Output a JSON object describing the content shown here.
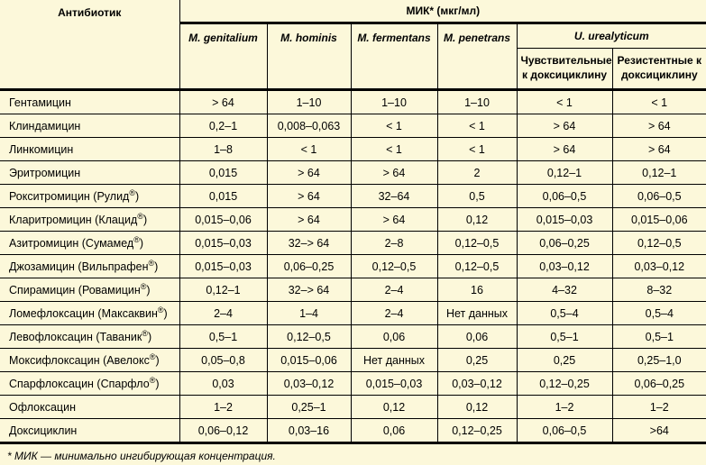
{
  "colors": {
    "background": "#fcf8da",
    "border": "#000000",
    "text": "#000000"
  },
  "table": {
    "col1_header": "Антибиотик",
    "group_header": "МИК* (мкг/мл)",
    "species_headers": [
      "M. genitalium",
      "M. hominis",
      "M. fermentans",
      "M. penetrans"
    ],
    "ureaplasma_header": "U. urealyticum",
    "ureaplasma_sub_headers": [
      "Чувствительные к доксициклину",
      "Резистентные к доксициклину"
    ],
    "rows": [
      {
        "name": "Гентамицин",
        "values": [
          "> 64",
          "1–10",
          "1–10",
          "1–10",
          "< 1",
          "< 1"
        ]
      },
      {
        "name": "Клиндамицин",
        "values": [
          "0,2–1",
          "0,008–0,063",
          "< 1",
          "< 1",
          "> 64",
          "> 64"
        ]
      },
      {
        "name": "Линкомицин",
        "values": [
          "1–8",
          "< 1",
          "< 1",
          "< 1",
          "> 64",
          "> 64"
        ]
      },
      {
        "name": "Эритромицин",
        "values": [
          "0,015",
          "> 64",
          "> 64",
          "2",
          "0,12–1",
          "0,12–1"
        ]
      },
      {
        "name": "Рокситромицин (Рулид®)",
        "values": [
          "0,015",
          "> 64",
          "32–64",
          "0,5",
          "0,06–0,5",
          "0,06–0,5"
        ]
      },
      {
        "name": "Кларитромицин (Клацид®)",
        "values": [
          "0,015–0,06",
          "> 64",
          "> 64",
          "0,12",
          "0,015–0,03",
          "0,015–0,06"
        ]
      },
      {
        "name": "Азитромицин (Сумамед®)",
        "values": [
          "0,015–0,03",
          "32–> 64",
          "2–8",
          "0,12–0,5",
          "0,06–0,25",
          "0,12–0,5"
        ]
      },
      {
        "name": "Джозамицин (Вильпрафен®)",
        "values": [
          "0,015–0,03",
          "0,06–0,25",
          "0,12–0,5",
          "0,12–0,5",
          "0,03–0,12",
          "0,03–0,12"
        ]
      },
      {
        "name": "Спирамицин (Ровамицин®)",
        "values": [
          "0,12–1",
          "32–> 64",
          "2–4",
          "16",
          "4–32",
          "8–32"
        ]
      },
      {
        "name": "Ломефлоксацин (Максаквин®)",
        "values": [
          "2–4",
          "1–4",
          "2–4",
          "Нет данных",
          "0,5–4",
          "0,5–4"
        ]
      },
      {
        "name": "Левофлоксацин (Таваник®)",
        "values": [
          "0,5–1",
          "0,12–0,5",
          "0,06",
          "0,06",
          "0,5–1",
          "0,5–1"
        ]
      },
      {
        "name": "Моксифлоксацин (Авелокс®)",
        "values": [
          "0,05–0,8",
          "0,015–0,06",
          "Нет данных",
          "0,25",
          "0,25",
          "0,25–1,0"
        ]
      },
      {
        "name": "Спарфлоксацин (Спарфло®)",
        "values": [
          "0,03",
          "0,03–0,12",
          "0,015–0,03",
          "0,03–0,12",
          "0,12–0,25",
          "0,06–0,25"
        ]
      },
      {
        "name": "Офлоксацин",
        "values": [
          "1–2",
          "0,25–1",
          "0,12",
          "0,12",
          "1–2",
          "1–2"
        ]
      },
      {
        "name": "Доксициклин",
        "values": [
          "0,06–0,12",
          "0,03–16",
          "0,06",
          "0,12–0,25",
          "0,06–0,5",
          ">64"
        ]
      }
    ],
    "footnote": "* МИК — минимально ингибирующая концентрация."
  }
}
